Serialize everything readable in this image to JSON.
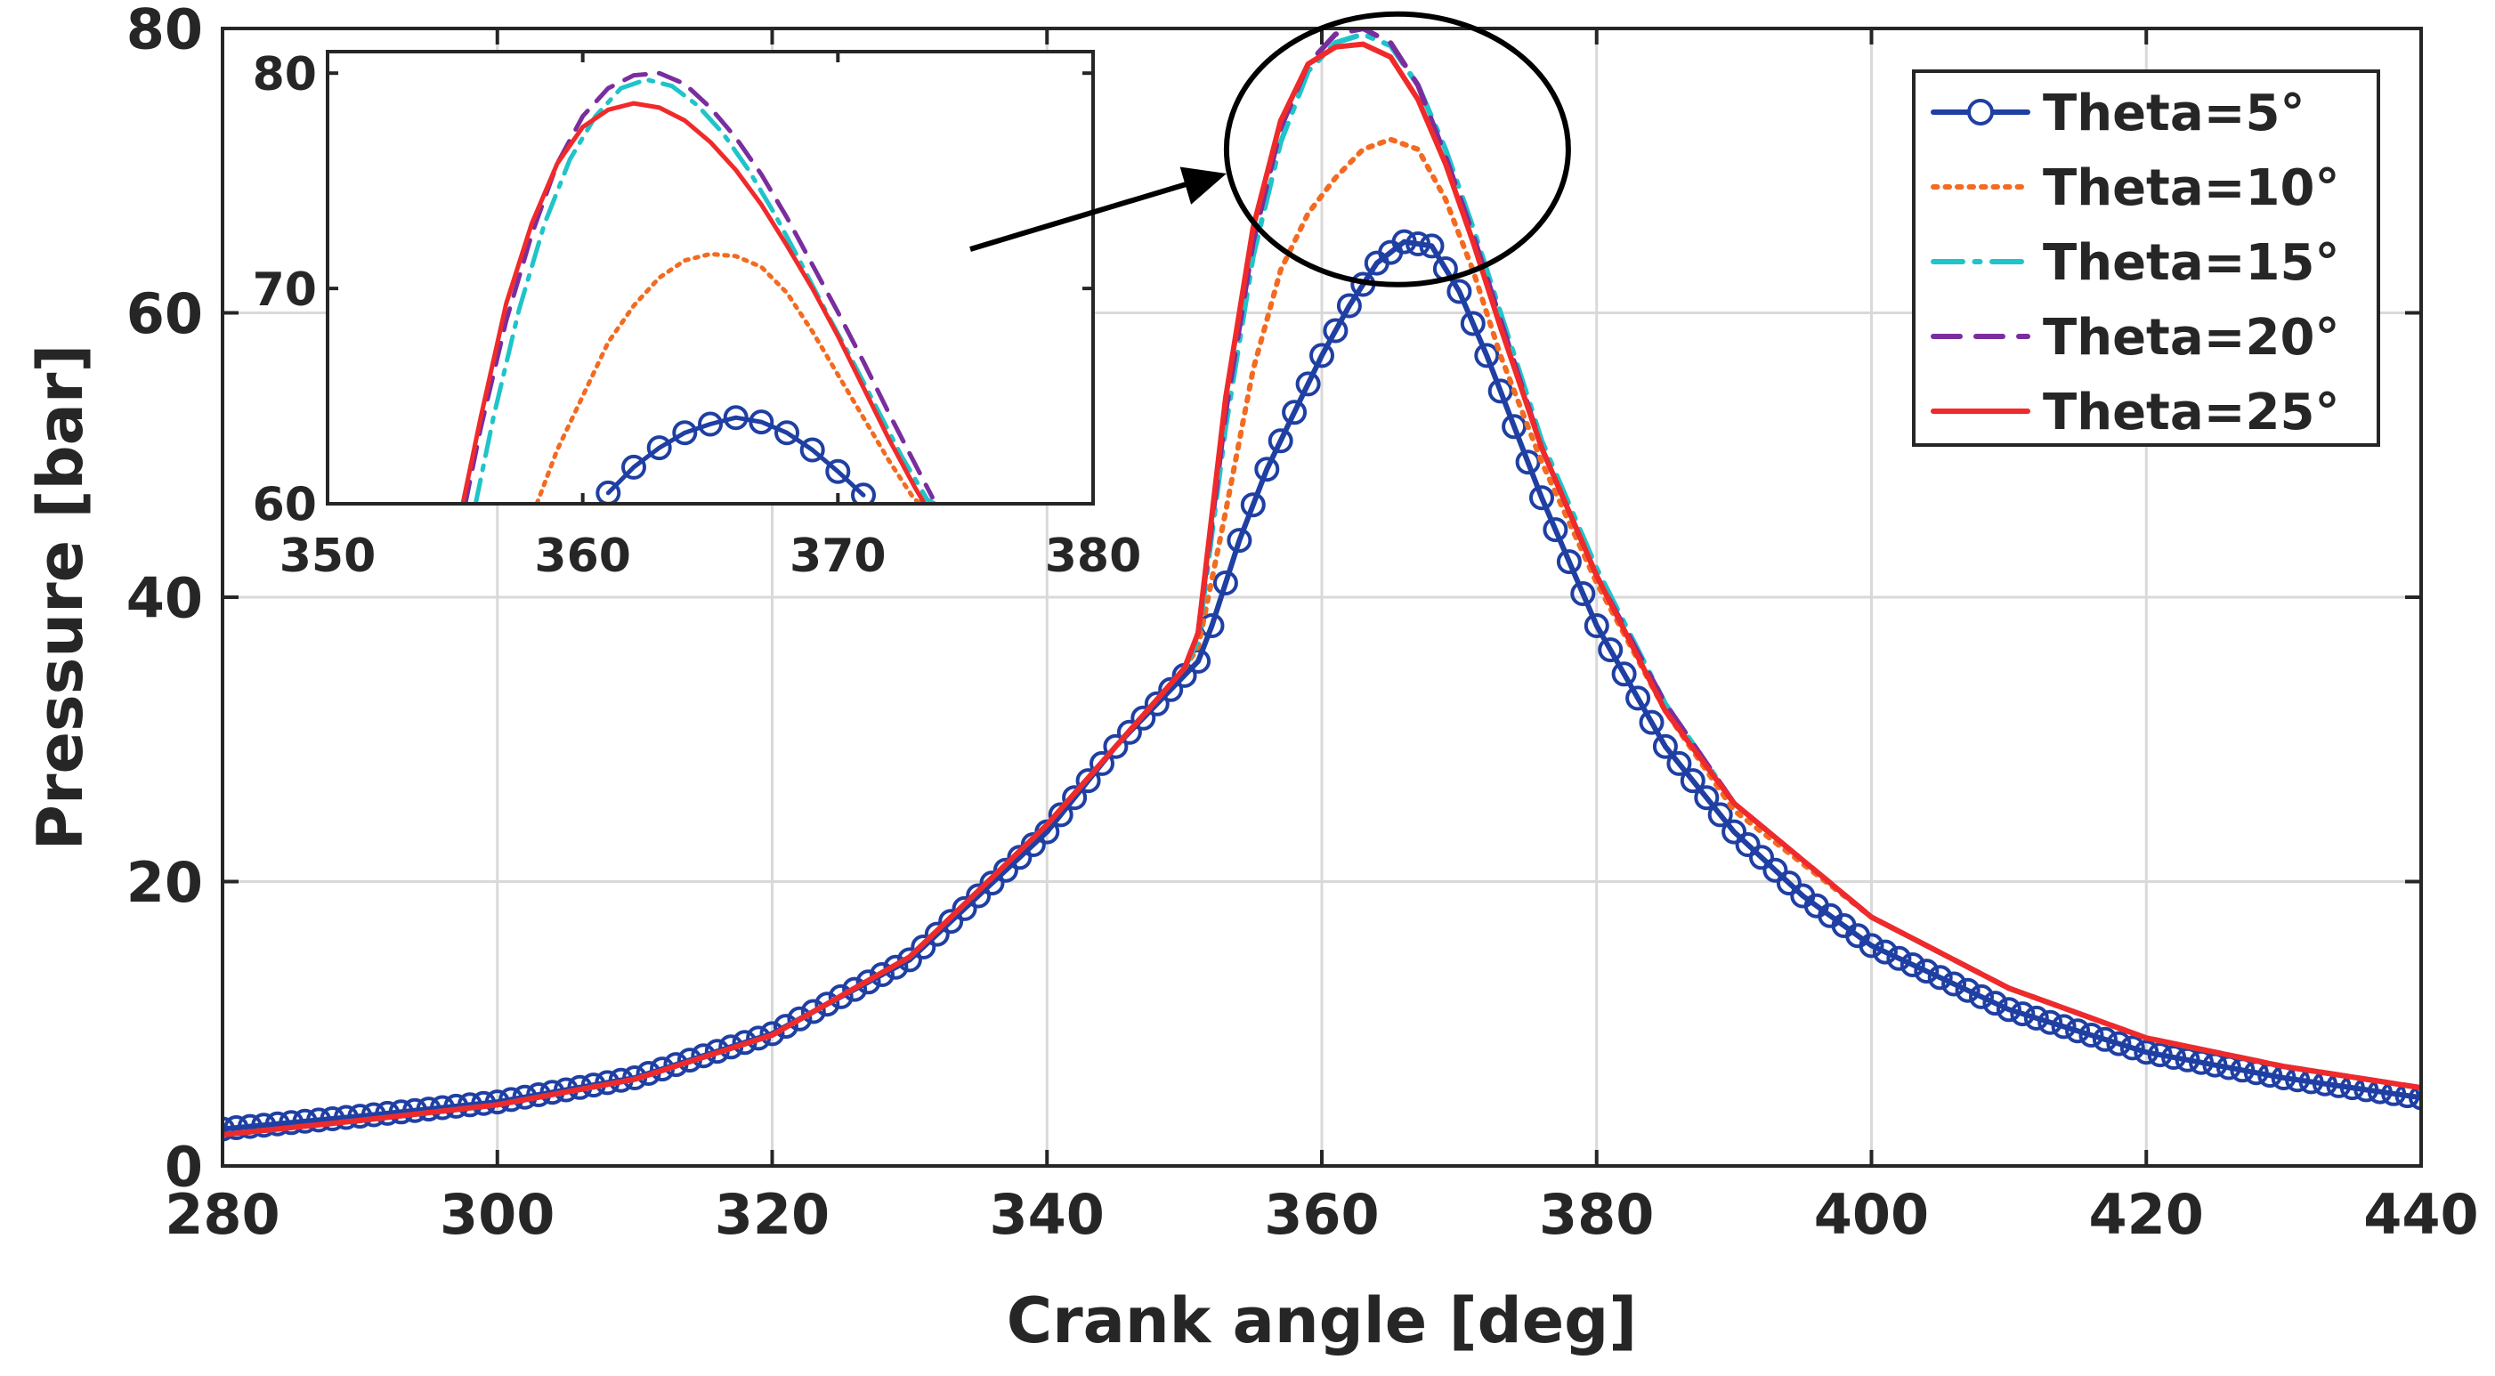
{
  "colors": {
    "theta5": "#1f3fa3",
    "theta10": "#f26b21",
    "theta15": "#1fc4c9",
    "theta20": "#7a2e9e",
    "theta25": "#f02a2a",
    "axis": "#262626",
    "grid": "#d9d9d9"
  },
  "chart_data": [
    {
      "id": "main",
      "type": "line",
      "xlabel": "Crank angle [deg]",
      "ylabel": "Pressure [bar]",
      "xlim": [
        280,
        440
      ],
      "ylim": [
        0,
        80
      ],
      "xticks": [
        280,
        300,
        320,
        340,
        360,
        380,
        400,
        420,
        440
      ],
      "yticks": [
        0,
        20,
        40,
        60,
        80
      ],
      "grid": true,
      "legend_position": "top-right",
      "series": [
        {
          "name": "Theta=5°",
          "style": "line-circle",
          "color_key": "theta5",
          "points": [
            [
              280,
              2.6
            ],
            [
              290,
              3.5
            ],
            [
              300,
              4.5
            ],
            [
              310,
              6.2
            ],
            [
              320,
              9.3
            ],
            [
              330,
              14.5
            ],
            [
              340,
              23.5
            ],
            [
              345,
              29.5
            ],
            [
              350,
              34.5
            ],
            [
              351,
              35.5
            ],
            [
              352,
              38
            ],
            [
              354,
              44
            ],
            [
              356,
              49
            ],
            [
              358,
              53
            ],
            [
              360,
              57
            ],
            [
              362,
              60.5
            ],
            [
              364,
              63.5
            ],
            [
              366,
              65
            ],
            [
              368,
              64.7
            ],
            [
              370,
              61.5
            ],
            [
              372,
              57
            ],
            [
              374,
              52
            ],
            [
              376,
              47
            ],
            [
              378,
              42.5
            ],
            [
              380,
              38
            ],
            [
              385,
              29.5
            ],
            [
              390,
              23.5
            ],
            [
              395,
              19
            ],
            [
              400,
              15.5
            ],
            [
              410,
              11
            ],
            [
              420,
              8
            ],
            [
              430,
              6.2
            ],
            [
              440,
              4.8
            ]
          ]
        },
        {
          "name": "Theta=10°",
          "style": "dotted",
          "color_key": "theta10",
          "points": [
            [
              280,
              2.2
            ],
            [
              290,
              3.2
            ],
            [
              300,
              4.3
            ],
            [
              310,
              6.1
            ],
            [
              320,
              9.2
            ],
            [
              330,
              14.7
            ],
            [
              340,
              24
            ],
            [
              350,
              35
            ],
            [
              351,
              36.5
            ],
            [
              353,
              46
            ],
            [
              355,
              56
            ],
            [
              357,
              63
            ],
            [
              359,
              67
            ],
            [
              361,
              69.5
            ],
            [
              363,
              71.5
            ],
            [
              365,
              72.2
            ],
            [
              367,
              71.5
            ],
            [
              369,
              68
            ],
            [
              371,
              63
            ],
            [
              373,
              57
            ],
            [
              376,
              49.5
            ],
            [
              380,
              41
            ],
            [
              385,
              32
            ],
            [
              390,
              25
            ],
            [
              400,
              17.5
            ],
            [
              410,
              12.5
            ],
            [
              420,
              9
            ],
            [
              430,
              7
            ],
            [
              440,
              5.5
            ]
          ]
        },
        {
          "name": "Theta=15°",
          "style": "dashdot",
          "color_key": "theta15",
          "points": [
            [
              280,
              2.2
            ],
            [
              290,
              3.2
            ],
            [
              300,
              4.3
            ],
            [
              310,
              6.1
            ],
            [
              320,
              9.2
            ],
            [
              330,
              14.7
            ],
            [
              340,
              24
            ],
            [
              350,
              35
            ],
            [
              351,
              37
            ],
            [
              353,
              52
            ],
            [
              355,
              64
            ],
            [
              357,
              72
            ],
            [
              359,
              77
            ],
            [
              361,
              79
            ],
            [
              363,
              79.6
            ],
            [
              365,
              78.8
            ],
            [
              367,
              76
            ],
            [
              369,
              71.5
            ],
            [
              371,
              66
            ],
            [
              373,
              60
            ],
            [
              376,
              51
            ],
            [
              380,
              42
            ],
            [
              385,
              32.5
            ],
            [
              390,
              25.5
            ],
            [
              400,
              17.5
            ],
            [
              410,
              12.5
            ],
            [
              420,
              9
            ],
            [
              430,
              7
            ],
            [
              440,
              5.5
            ]
          ]
        },
        {
          "name": "Theta=20°",
          "style": "dashed",
          "color_key": "theta20",
          "points": [
            [
              280,
              2.2
            ],
            [
              290,
              3.2
            ],
            [
              300,
              4.3
            ],
            [
              310,
              6.1
            ],
            [
              320,
              9.2
            ],
            [
              330,
              14.7
            ],
            [
              340,
              24
            ],
            [
              350,
              35
            ],
            [
              351,
              37.5
            ],
            [
              353,
              53
            ],
            [
              355,
              65
            ],
            [
              357,
              73
            ],
            [
              359,
              77.5
            ],
            [
              361,
              79.6
            ],
            [
              363,
              80
            ],
            [
              365,
              79
            ],
            [
              367,
              76
            ],
            [
              369,
              71
            ],
            [
              371,
              65.5
            ],
            [
              373,
              59.5
            ],
            [
              376,
              50.5
            ],
            [
              380,
              41.5
            ],
            [
              385,
              32.5
            ],
            [
              390,
              25.5
            ],
            [
              400,
              17.5
            ],
            [
              410,
              12.5
            ],
            [
              420,
              9
            ],
            [
              430,
              7
            ],
            [
              440,
              5.5
            ]
          ]
        },
        {
          "name": "Theta=25°",
          "style": "solid",
          "color_key": "theta25",
          "points": [
            [
              280,
              2.2
            ],
            [
              290,
              3.2
            ],
            [
              300,
              4.3
            ],
            [
              310,
              6.1
            ],
            [
              320,
              9.2
            ],
            [
              330,
              14.7
            ],
            [
              340,
              24
            ],
            [
              350,
              35
            ],
            [
              351,
              37.5
            ],
            [
              353,
              54
            ],
            [
              355,
              66
            ],
            [
              357,
              73.5
            ],
            [
              359,
              77.5
            ],
            [
              361,
              78.7
            ],
            [
              363,
              78.9
            ],
            [
              365,
              78
            ],
            [
              367,
              75
            ],
            [
              369,
              70.5
            ],
            [
              371,
              65
            ],
            [
              373,
              59
            ],
            [
              376,
              50.5
            ],
            [
              380,
              41.5
            ],
            [
              385,
              32
            ],
            [
              390,
              25.5
            ],
            [
              400,
              17.5
            ],
            [
              410,
              12.5
            ],
            [
              420,
              9
            ],
            [
              430,
              7
            ],
            [
              440,
              5.5
            ]
          ]
        }
      ]
    },
    {
      "id": "inset",
      "type": "line",
      "xlim": [
        350,
        380
      ],
      "ylim": [
        60,
        81
      ],
      "xticks": [
        350,
        360,
        370,
        380
      ],
      "yticks": [
        60,
        70,
        80
      ],
      "grid": false,
      "annotation": "zoom circle around main-curve peak with arrow pointing from inset",
      "series": [
        {
          "name": "Theta=5°",
          "style": "line-circle",
          "color_key": "theta5",
          "points": [
            [
              361,
              60.5
            ],
            [
              362,
              61.7
            ],
            [
              363,
              62.6
            ],
            [
              364,
              63.3
            ],
            [
              365,
              63.7
            ],
            [
              366,
              64
            ],
            [
              367,
              63.8
            ],
            [
              368,
              63.3
            ],
            [
              369,
              62.5
            ],
            [
              370,
              61.5
            ],
            [
              371,
              60.4
            ]
          ]
        },
        {
          "name": "Theta=10°",
          "style": "dotted",
          "color_key": "theta10",
          "points": [
            [
              358.2,
              60
            ],
            [
              359,
              62.5
            ],
            [
              360,
              65
            ],
            [
              361,
              67.5
            ],
            [
              362,
              69.2
            ],
            [
              363,
              70.5
            ],
            [
              364,
              71.3
            ],
            [
              365,
              71.6
            ],
            [
              366,
              71.5
            ],
            [
              367,
              71
            ],
            [
              368,
              69.8
            ],
            [
              369,
              68
            ],
            [
              370,
              66
            ],
            [
              371,
              64
            ],
            [
              372,
              62
            ],
            [
              373,
              60.2
            ],
            [
              373.3,
              60
            ]
          ]
        },
        {
          "name": "Theta=15°",
          "style": "dashdot",
          "color_key": "theta15",
          "points": [
            [
              355.8,
              60
            ],
            [
              356.5,
              64
            ],
            [
              357.5,
              69
            ],
            [
              358.5,
              73
            ],
            [
              359.5,
              76
            ],
            [
              360.5,
              78
            ],
            [
              361.5,
              79.3
            ],
            [
              362.5,
              79.7
            ],
            [
              363.5,
              79.4
            ],
            [
              364.5,
              78.5
            ],
            [
              365.5,
              77.2
            ],
            [
              366.5,
              75.5
            ],
            [
              367.5,
              73.5
            ],
            [
              368.5,
              71.3
            ],
            [
              369.5,
              69
            ],
            [
              370.5,
              66.8
            ],
            [
              371.5,
              64.5
            ],
            [
              372.5,
              62.2
            ],
            [
              373.5,
              60.2
            ],
            [
              373.8,
              60
            ]
          ]
        },
        {
          "name": "Theta=20°",
          "style": "dashed",
          "color_key": "theta20",
          "points": [
            [
              355.4,
              60
            ],
            [
              356,
              63.5
            ],
            [
              357,
              68.5
            ],
            [
              358,
              72.5
            ],
            [
              359,
              75.8
            ],
            [
              360,
              78
            ],
            [
              361,
              79.3
            ],
            [
              362,
              79.9
            ],
            [
              363,
              80
            ],
            [
              364,
              79.5
            ],
            [
              365,
              78.4
            ],
            [
              366,
              77
            ],
            [
              367,
              75.3
            ],
            [
              368,
              73.3
            ],
            [
              369,
              71.1
            ],
            [
              370,
              68.9
            ],
            [
              371,
              66.6
            ],
            [
              372,
              64.2
            ],
            [
              373,
              61.9
            ],
            [
              373.7,
              60.3
            ]
          ]
        },
        {
          "name": "Theta=25°",
          "style": "solid",
          "color_key": "theta25",
          "points": [
            [
              355.3,
              60
            ],
            [
              356,
              64
            ],
            [
              357,
              69.3
            ],
            [
              358,
              73
            ],
            [
              359,
              75.8
            ],
            [
              360,
              77.5
            ],
            [
              361,
              78.3
            ],
            [
              362,
              78.6
            ],
            [
              363,
              78.4
            ],
            [
              364,
              77.8
            ],
            [
              365,
              76.8
            ],
            [
              366,
              75.5
            ],
            [
              367,
              73.9
            ],
            [
              368,
              72
            ],
            [
              369,
              70
            ],
            [
              370,
              67.8
            ],
            [
              371,
              65.4
            ],
            [
              372,
              63
            ],
            [
              373,
              60.8
            ],
            [
              373.4,
              60
            ]
          ]
        }
      ]
    }
  ]
}
